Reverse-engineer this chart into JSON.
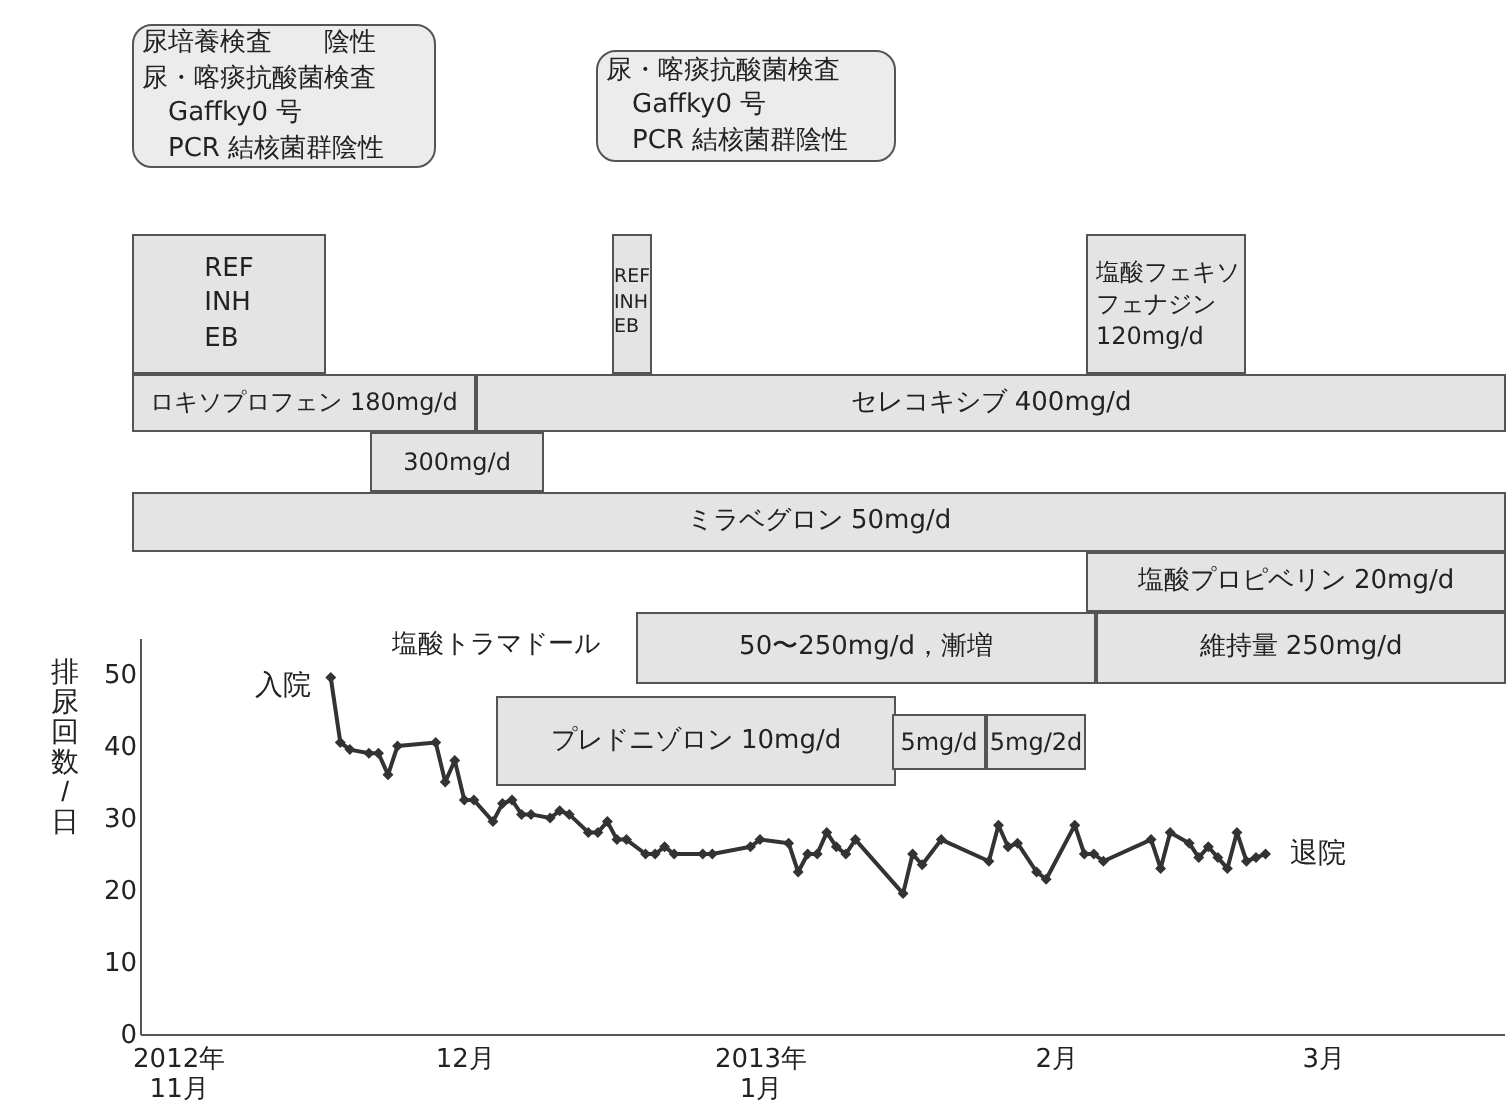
{
  "chart_data": {
    "type": "line",
    "ylabel": "排尿回数/日",
    "x": [
      "2012-11-17",
      "2012-11-18",
      "2012-11-19",
      "2012-11-21",
      "2012-11-22",
      "2012-11-23",
      "2012-11-24",
      "2012-11-28",
      "2012-11-29",
      "2012-11-30",
      "2012-12-01",
      "2012-12-02",
      "2012-12-04",
      "2012-12-05",
      "2012-12-06",
      "2012-12-07",
      "2012-12-08",
      "2012-12-10",
      "2012-12-11",
      "2012-12-12",
      "2012-12-14",
      "2012-12-15",
      "2012-12-16",
      "2012-12-17",
      "2012-12-18",
      "2012-12-20",
      "2012-12-21",
      "2012-12-22",
      "2012-12-23",
      "2012-12-26",
      "2012-12-27",
      "2012-12-31",
      "2013-01-01",
      "2013-01-04",
      "2013-01-05",
      "2013-01-06",
      "2013-01-07",
      "2013-01-08",
      "2013-01-09",
      "2013-01-10",
      "2013-01-11",
      "2013-01-16",
      "2013-01-17",
      "2013-01-18",
      "2013-01-20",
      "2013-01-25",
      "2013-01-26",
      "2013-01-27",
      "2013-01-28",
      "2013-01-30",
      "2013-01-31",
      "2013-02-03",
      "2013-02-04",
      "2013-02-05",
      "2013-02-06",
      "2013-02-11",
      "2013-02-12",
      "2013-02-13",
      "2013-02-15",
      "2013-02-16",
      "2013-02-17",
      "2013-02-18",
      "2013-02-19",
      "2013-02-20",
      "2013-02-21",
      "2013-02-22",
      "2013-02-23"
    ],
    "series": [
      {
        "color": "#333333",
        "values": [
          49.5,
          40.5,
          39.5,
          39,
          39,
          36,
          40,
          40.5,
          35,
          38,
          32.5,
          32.5,
          29.5,
          32,
          32.5,
          30.5,
          30.5,
          30,
          31,
          30.5,
          28,
          28,
          29.5,
          27,
          27,
          25,
          25,
          26,
          25,
          25,
          25,
          26,
          27,
          26.5,
          22.5,
          25,
          25,
          28,
          26,
          25,
          27,
          19.5,
          25,
          23.5,
          27,
          24,
          29,
          26,
          26.5,
          22.5,
          21.5,
          29,
          25,
          25,
          24,
          27,
          23,
          28,
          26.5,
          24.5,
          26,
          24.5,
          23,
          28,
          24,
          24.5,
          25
        ]
      }
    ],
    "xlim": [
      "2012-10-28",
      "2013-03-20"
    ],
    "xticks": [
      {
        "value": "2012-11-01",
        "label": "2012年\n11月"
      },
      {
        "value": "2012-12-01",
        "label": "12月"
      },
      {
        "value": "2013-01-01",
        "label": "2013年\n1月"
      },
      {
        "value": "2013-02-01",
        "label": "2月"
      },
      {
        "value": "2013-03-01",
        "label": "3月"
      }
    ],
    "ylim": [
      0,
      55
    ],
    "yticks": [
      0,
      10,
      20,
      30,
      40,
      50
    ],
    "marker": "diamond",
    "line_style": "solid",
    "annotations": [
      "尿培養検査　　陰性",
      "尿・喀痰抗酸菌検査\n　Gaffky0 号\n　PCR 結核菌群陰性",
      "尿・喀痰抗酸菌検査\n　Gaffky0 号\n　PCR 結核菌群陰性",
      "REF\nINH\nEB",
      "REF\nINH\nEB",
      "塩酸フェキソフェナジン\n120mg/d",
      "ロキソプロフェン 180mg/d",
      "セレコキシブ 400mg/d",
      "300mg/d",
      "ミラベグロン 50mg/d",
      "塩酸プロピベリン 20mg/d",
      "塩酸トラマドール",
      "50〜250mg/d，漸増",
      "維持量 250mg/d",
      "プレドニゾロン 10mg/d",
      "5mg/d",
      "5mg/2d",
      {
        "text": "入院",
        "x": "2012-11-17",
        "y": 49.5
      },
      {
        "text": "退院",
        "x": "2013-02-23",
        "y": 25
      }
    ]
  }
}
